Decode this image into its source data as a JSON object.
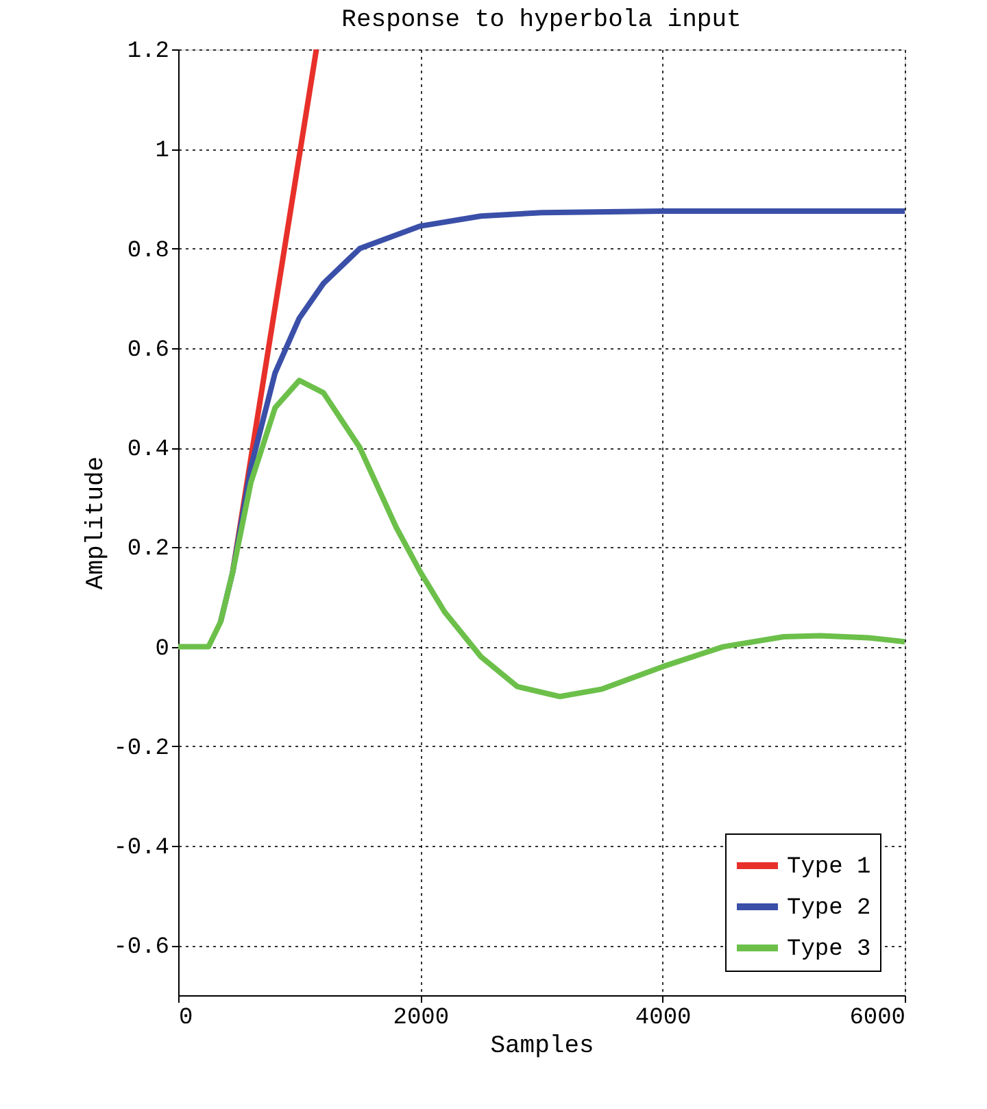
{
  "chart_data": {
    "type": "line",
    "title": "Response to hyperbola input",
    "xlabel": "Samples",
    "ylabel": "Amplitude",
    "xlim": [
      0,
      6000
    ],
    "xticks": [
      0,
      2000,
      4000,
      6000
    ],
    "ylim": [
      -0.7,
      1.2
    ],
    "yticks": [
      -0.6,
      -0.4,
      -0.2,
      0,
      0.2,
      0.4,
      0.6,
      0.8,
      1,
      1.2
    ],
    "grid": true,
    "legend": "bottom right",
    "line_style": "solid",
    "marker": "none",
    "series": [
      {
        "name": "Type 1",
        "color": "#e8302a",
        "x": [
          450,
          1141
        ],
        "values": [
          0.15,
          1.2
        ]
      },
      {
        "name": "Type 2",
        "color": "#3a4fa8",
        "x": [
          350,
          450,
          600,
          800,
          1000,
          1200,
          1500,
          2000,
          2500,
          3000,
          4000,
          6000
        ],
        "values": [
          0.05,
          0.15,
          0.36,
          0.55,
          0.66,
          0.73,
          0.8,
          0.845,
          0.865,
          0.872,
          0.875,
          0.875
        ]
      },
      {
        "name": "Type 3",
        "color": "#6cc04a",
        "x": [
          0,
          250,
          350,
          450,
          600,
          800,
          1000,
          1200,
          1500,
          1800,
          2000,
          2200,
          2500,
          2800,
          3150,
          3500,
          4000,
          4500,
          5000,
          5300,
          5700,
          6000
        ],
        "values": [
          0,
          0,
          0.05,
          0.15,
          0.33,
          0.48,
          0.535,
          0.51,
          0.4,
          0.24,
          0.15,
          0.07,
          -0.02,
          -0.08,
          -0.1,
          -0.085,
          -0.04,
          0,
          0.02,
          0.022,
          0.018,
          0.01
        ]
      }
    ]
  }
}
